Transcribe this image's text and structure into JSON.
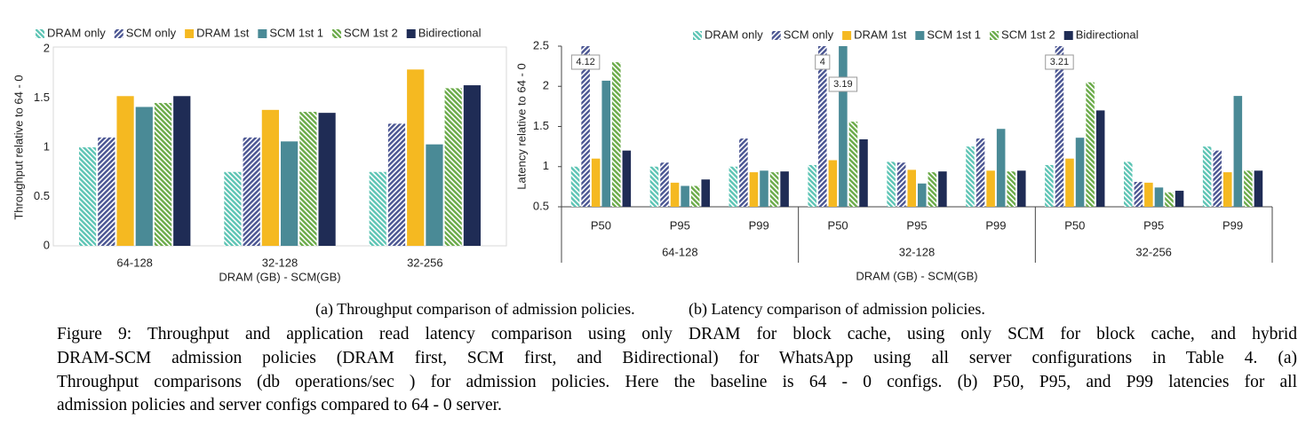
{
  "chart_data": [
    {
      "type": "bar",
      "y_label": "Throughput relative to 64 - 0",
      "x_label": "DRAM (GB) - SCM(GB)",
      "categories": [
        "64-128",
        "32-128",
        "32-256"
      ],
      "ylim": [
        0,
        2
      ],
      "yticks": [
        0,
        0.5,
        1,
        1.5,
        2
      ],
      "series": [
        {
          "name": "DRAM only",
          "color": "#5cc4b4",
          "hatched": true,
          "values": [
            1.0,
            0.75,
            0.75
          ]
        },
        {
          "name": "SCM only",
          "color": "#4a5592",
          "hatched": true,
          "values": [
            1.1,
            1.1,
            1.24
          ]
        },
        {
          "name": "DRAM 1st",
          "color": "#f5b921",
          "hatched": false,
          "values": [
            1.52,
            1.38,
            1.79
          ]
        },
        {
          "name": "SCM 1st 1",
          "color": "#4a8a96",
          "hatched": false,
          "values": [
            1.41,
            1.06,
            1.03
          ]
        },
        {
          "name": "SCM 1st 2",
          "color": "#6aaa48",
          "hatched": true,
          "values": [
            1.45,
            1.36,
            1.6
          ]
        },
        {
          "name": "Bidirectional",
          "color": "#1f2c55",
          "hatched": false,
          "values": [
            1.52,
            1.35,
            1.63
          ]
        }
      ],
      "caption": "(a) Throughput comparison of admission policies."
    },
    {
      "type": "bar",
      "y_label": "Latency relative to 64 - 0",
      "x_label": "DRAM (GB) - SCM(GB)",
      "categories": [
        "P50",
        "P95",
        "P99",
        "P50",
        "P95",
        "P99",
        "P50",
        "P95",
        "P99"
      ],
      "groups": [
        "64-128",
        "32-128",
        "32-256"
      ],
      "ylim": [
        0.5,
        2.5
      ],
      "yticks": [
        0.5,
        1,
        1.5,
        2,
        2.5
      ],
      "series": [
        {
          "name": "DRAM only",
          "color": "#5cc4b4",
          "hatched": true,
          "values": [
            1.0,
            1.0,
            1.0,
            1.02,
            1.06,
            1.25,
            1.02,
            1.06,
            1.25
          ]
        },
        {
          "name": "SCM only",
          "color": "#4a5592",
          "hatched": true,
          "values": [
            4.12,
            1.05,
            1.35,
            4,
            1.05,
            1.35,
            3.21,
            0.81,
            1.2
          ],
          "value_labels": [
            "4.12",
            null,
            null,
            "4",
            null,
            null,
            "3.21",
            null,
            null
          ]
        },
        {
          "name": "DRAM 1st",
          "color": "#f5b921",
          "hatched": false,
          "values": [
            1.1,
            0.8,
            0.93,
            1.08,
            0.96,
            0.95,
            1.1,
            0.8,
            0.93
          ]
        },
        {
          "name": "SCM 1st 1",
          "color": "#4a8a96",
          "hatched": false,
          "values": [
            2.07,
            0.76,
            0.95,
            3.19,
            0.79,
            1.47,
            1.36,
            0.74,
            1.88
          ],
          "value_labels": [
            null,
            null,
            null,
            "3.19",
            null,
            null,
            null,
            null,
            null
          ]
        },
        {
          "name": "SCM 1st 2",
          "color": "#6aaa48",
          "hatched": true,
          "values": [
            2.3,
            0.76,
            0.93,
            1.56,
            0.93,
            0.94,
            2.05,
            0.68,
            0.95
          ]
        },
        {
          "name": "Bidirectional",
          "color": "#1f2c55",
          "hatched": false,
          "values": [
            1.2,
            0.84,
            0.94,
            1.34,
            0.94,
            0.95,
            1.7,
            0.7,
            0.95
          ]
        }
      ],
      "caption": "(b) Latency comparison of admission policies."
    }
  ],
  "figure_caption": [
    "Figure 9: Throughput and application read latency comparison using only DRAM for block cache, using only SCM for block cache, and hybrid",
    "DRAM-SCM admission policies (DRAM first, SCM first, and Bidirectional) for WhatsApp using all server configurations in Table 4. (a)",
    "Throughput comparisons (db operations/sec ) for admission policies. Here the baseline is 64 - 0 configs. (b) P50, P95, and P99 latencies for all",
    "admission policies and server configs compared to 64 - 0 server."
  ]
}
